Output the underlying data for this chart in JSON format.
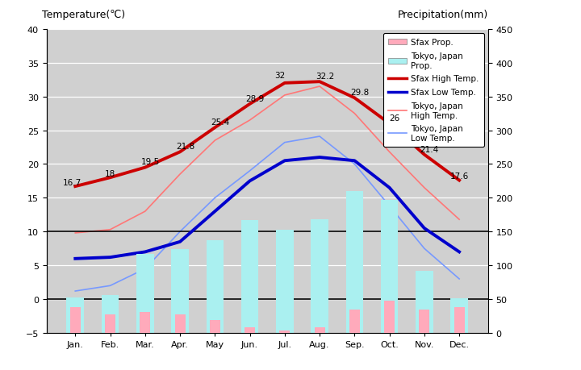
{
  "months": [
    "Jan.",
    "Feb.",
    "Mar.",
    "Apr.",
    "May",
    "Jun.",
    "Jul.",
    "Aug.",
    "Sep.",
    "Oct.",
    "Nov.",
    "Dec."
  ],
  "sfax_high_temp": [
    16.7,
    18,
    19.5,
    21.8,
    25.4,
    28.9,
    32,
    32.2,
    29.8,
    26,
    21.4,
    17.6
  ],
  "sfax_low_temp": [
    6.0,
    6.2,
    7.0,
    8.5,
    13.0,
    17.5,
    20.5,
    21.0,
    20.5,
    16.5,
    10.5,
    7.0
  ],
  "tokyo_high_temp": [
    9.8,
    10.3,
    13.0,
    18.5,
    23.5,
    26.5,
    30.2,
    31.5,
    27.5,
    21.8,
    16.5,
    11.8
  ],
  "tokyo_low_temp": [
    1.2,
    2.0,
    4.5,
    10.0,
    15.0,
    19.0,
    23.2,
    24.1,
    20.0,
    13.8,
    7.5,
    3.0
  ],
  "tokyo_precip_mm": [
    52,
    56,
    117,
    124,
    137,
    167,
    153,
    168,
    210,
    197,
    92,
    51
  ],
  "sfax_precip_mm": [
    38,
    28,
    31,
    28,
    19,
    8,
    4,
    8,
    35,
    48,
    35,
    38
  ],
  "title_left": "Temperature(℃)",
  "title_right": "Precipitation(mm)",
  "bg_color": "#d0d0d0",
  "sfax_high_color": "#cc0000",
  "sfax_low_color": "#0000cc",
  "tokyo_high_color": "#ff7777",
  "tokyo_low_color": "#7799ff",
  "sfax_precip_color": "#ffaabb",
  "tokyo_precip_color": "#aaf0f0",
  "ylim_temp": [
    -5,
    40
  ],
  "ylim_precip": [
    0,
    450
  ],
  "temp_ticks": [
    -5,
    0,
    5,
    10,
    15,
    20,
    25,
    30,
    35,
    40
  ],
  "precip_ticks": [
    0,
    50,
    100,
    150,
    200,
    250,
    300,
    350,
    400,
    450
  ],
  "sfax_high_annot_offsets_x": [
    -0.1,
    0.0,
    0.15,
    0.15,
    0.15,
    0.15,
    -0.15,
    0.15,
    0.15,
    0.15,
    0.15,
    0.0
  ],
  "sfax_high_annot_offsets_y": [
    0.3,
    0.3,
    0.5,
    0.5,
    0.5,
    0.5,
    0.8,
    0.5,
    0.5,
    0.5,
    0.5,
    0.3
  ]
}
